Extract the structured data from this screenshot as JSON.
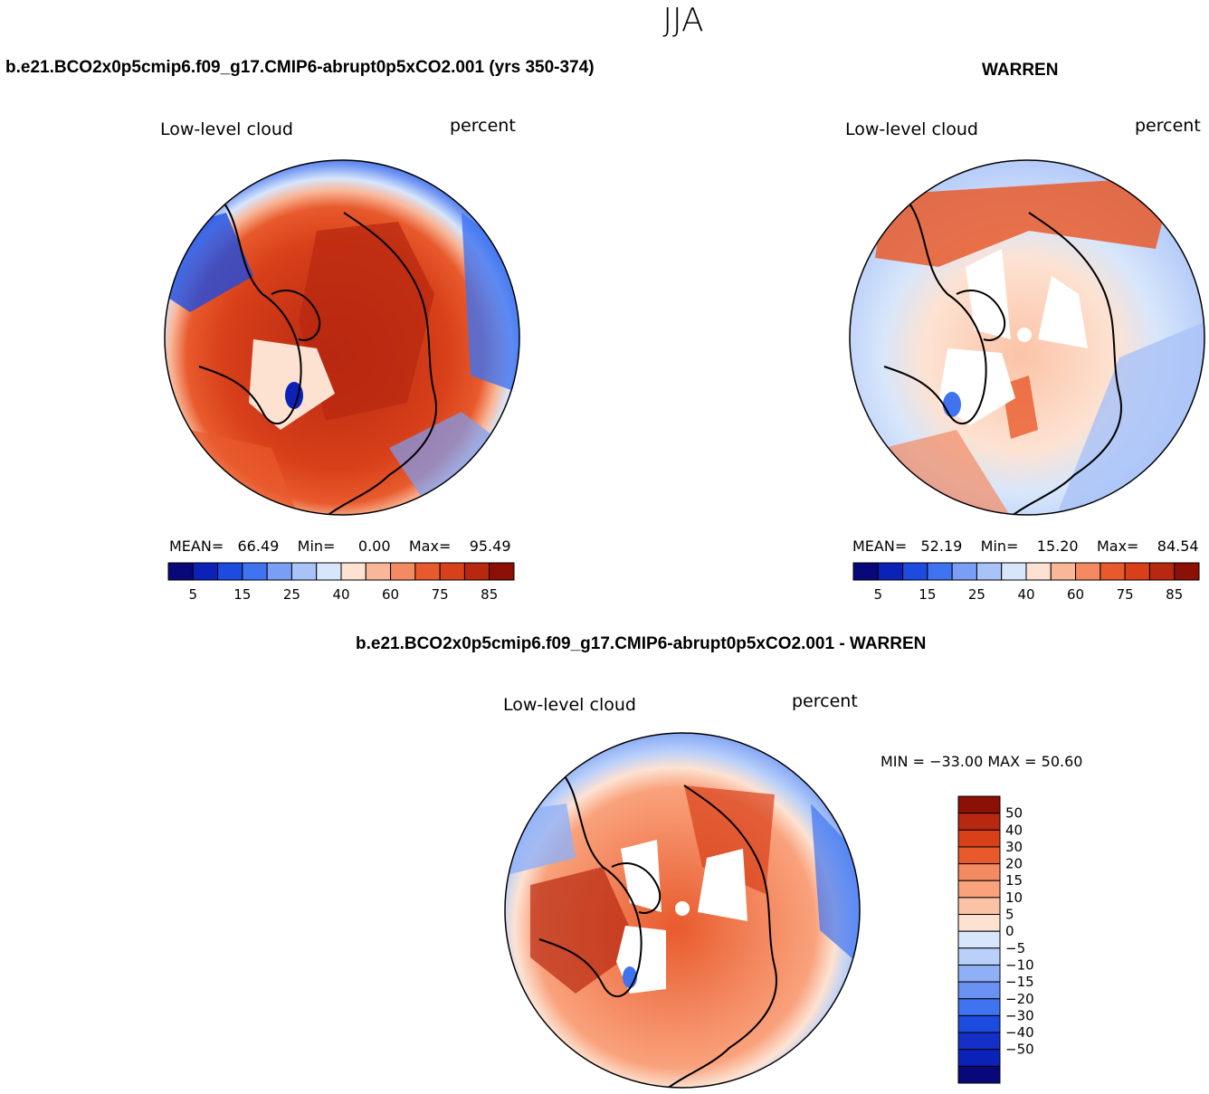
{
  "season": "JJA",
  "panels": [
    {
      "title": "b.e21.BCO2x0p5cmip6.f09_g17.CMIP6-abrupt0p5xCO2.001 (yrs 350-374)",
      "left_label": "Low-level cloud",
      "right_label": "percent",
      "stats": {
        "mean_label": "MEAN=",
        "mean": "66.49",
        "min_label": "Min=",
        "min": "0.00",
        "max_label": "Max=",
        "max": "95.49"
      }
    },
    {
      "title": "WARREN",
      "left_label": "Low-level cloud",
      "right_label": "percent",
      "stats": {
        "mean_label": "MEAN=",
        "mean": "52.19",
        "min_label": "Min=",
        "min": "15.20",
        "max_label": "Max=",
        "max": "84.54"
      }
    },
    {
      "title": "b.e21.BCO2x0p5cmip6.f09_g17.CMIP6-abrupt0p5xCO2.001 - WARREN",
      "left_label": "Low-level cloud",
      "right_label": "percent",
      "minmax": "MIN = −33.00  MAX =   50.60"
    }
  ],
  "colorbar_abs": {
    "colors": [
      "#08087a",
      "#0b22b8",
      "#1d4be0",
      "#3f73f0",
      "#7a9ef5",
      "#a9c2f8",
      "#d7e6fb",
      "#fde2d2",
      "#f9b698",
      "#f48a62",
      "#e85a2c",
      "#d8401a",
      "#b82810",
      "#8c1005"
    ],
    "labels": [
      "5",
      "15",
      "25",
      "40",
      "60",
      "75",
      "85",
      "95"
    ]
  },
  "colorbar_diff": {
    "colors_top_down": [
      "#8c1005",
      "#b82810",
      "#d8401a",
      "#e85a2c",
      "#f48a62",
      "#f9a27c",
      "#fbc3a6",
      "#fde2d2",
      "#d7e6fb",
      "#b9d0fa",
      "#8fb0f7",
      "#6b92f2",
      "#3f73f0",
      "#1d4be0",
      "#1530c8",
      "#0b22b8",
      "#08087a"
    ],
    "labels_top_down": [
      "50",
      "40",
      "30",
      "20",
      "15",
      "10",
      "5",
      "0",
      "−5",
      "−10",
      "−15",
      "−20",
      "−30",
      "−40",
      "−50"
    ]
  }
}
